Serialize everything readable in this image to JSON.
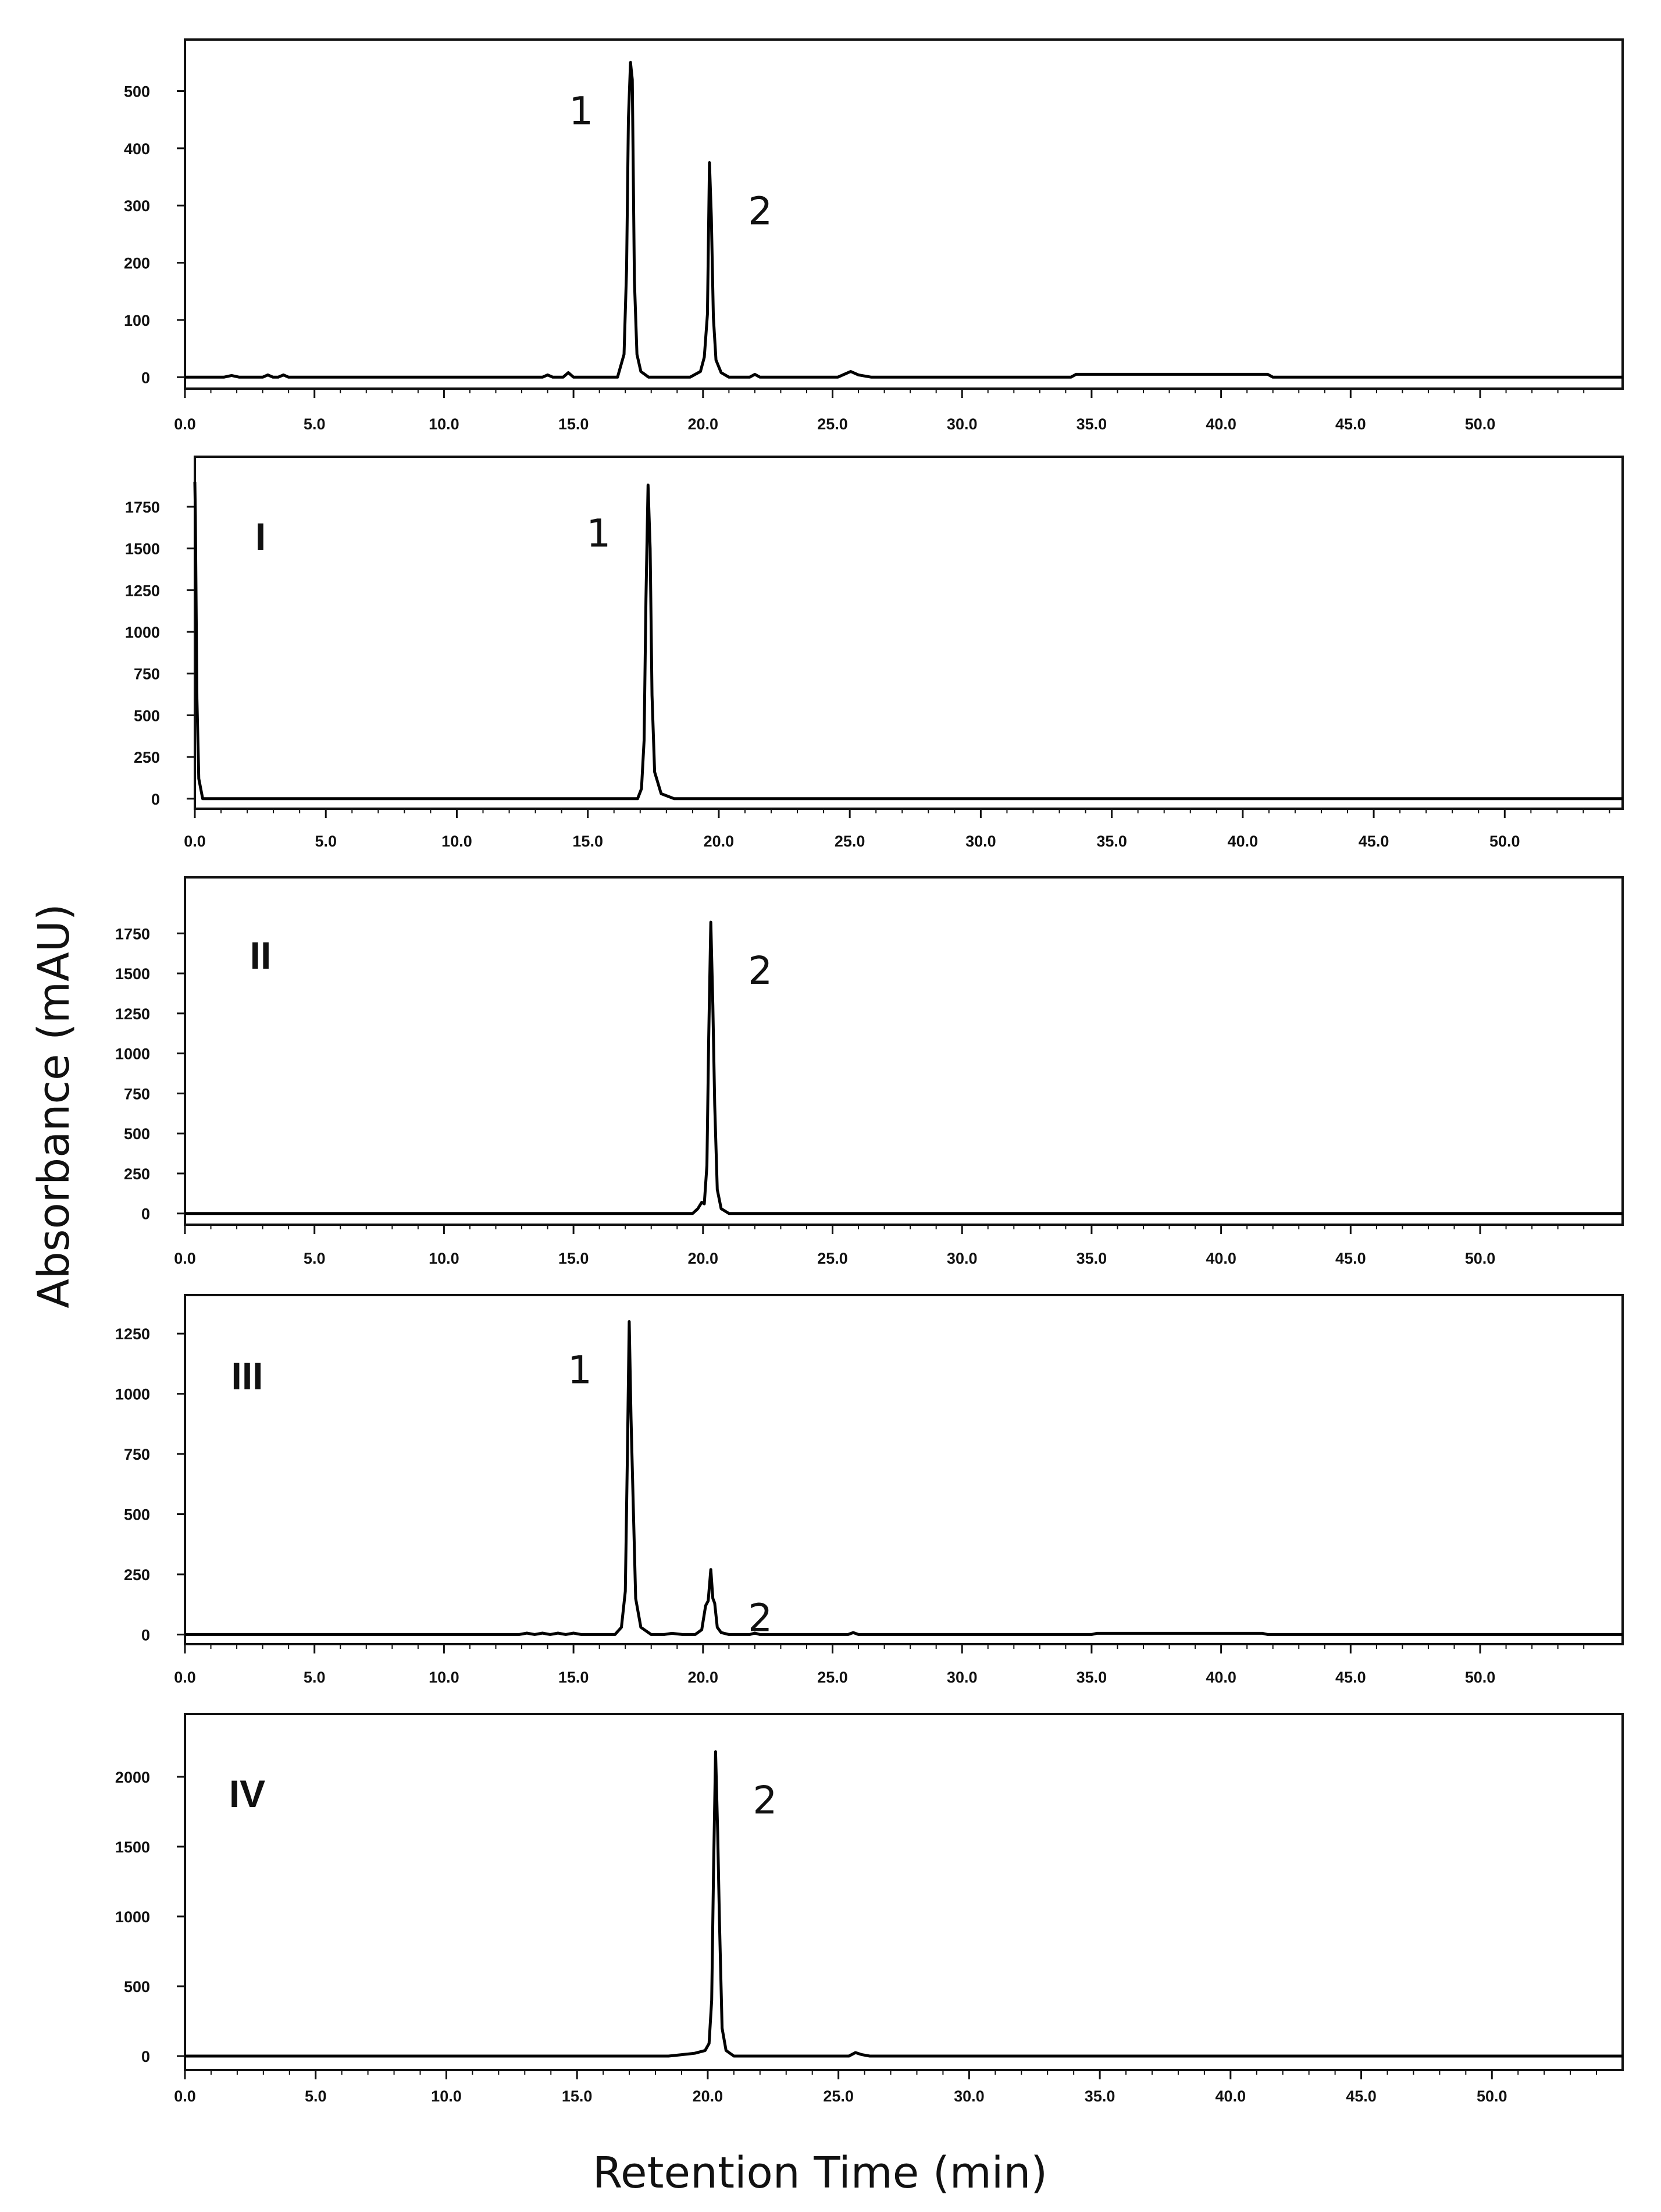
{
  "figure": {
    "xlabel": "Retention Time (min)",
    "ylabel": "Absorbance (mAU)",
    "colors": {
      "trace": "#000000",
      "frame": "#111111"
    }
  },
  "chart_data": [
    {
      "type": "line",
      "panel_label": "",
      "x_ticks": [
        "0.0",
        "5.0",
        "10.0",
        "15.0",
        "20.0",
        "25.0",
        "30.0",
        "35.0",
        "40.0",
        "45.0",
        "50.0"
      ],
      "y_ticks": [
        "0",
        "100",
        "200",
        "300",
        "400",
        "500"
      ],
      "xlim": [
        0,
        55.5
      ],
      "ylim": [
        -20,
        590
      ],
      "peaks": [
        {
          "label": "1",
          "x": 17.2,
          "y": 550
        },
        {
          "label": "2",
          "x": 20.3,
          "y": 375
        }
      ],
      "series": [
        {
          "x": [
            0,
            1.5,
            1.8,
            2.1,
            3.0,
            3.2,
            3.4,
            3.6,
            3.8,
            4.0,
            10,
            13.8,
            14.0,
            14.2,
            14.6,
            14.8,
            15.0,
            16.7,
            16.95,
            17.05,
            17.12,
            17.2,
            17.27,
            17.35,
            17.45,
            17.6,
            17.9,
            18.5,
            19.5,
            19.9,
            20.05,
            20.17,
            20.25,
            20.32,
            20.4,
            20.5,
            20.7,
            21.0,
            21.8,
            22.0,
            22.2,
            25.2,
            25.5,
            25.7,
            26.0,
            26.5,
            34.2,
            34.4,
            41.8,
            42.0,
            55.5
          ],
          "y": [
            0,
            0,
            3,
            0,
            0,
            4,
            0,
            0,
            4,
            0,
            0,
            0,
            4,
            0,
            0,
            8,
            0,
            0,
            40,
            190,
            450,
            550,
            520,
            170,
            40,
            10,
            0,
            0,
            0,
            10,
            35,
            110,
            375,
            280,
            105,
            30,
            8,
            0,
            0,
            5,
            0,
            0,
            6,
            10,
            4,
            0,
            0,
            5,
            5,
            0,
            0
          ]
        }
      ]
    },
    {
      "type": "line",
      "panel_label": "I",
      "x_ticks": [
        "0.0",
        "5.0",
        "10.0",
        "15.0",
        "20.0",
        "25.0",
        "30.0",
        "35.0",
        "40.0",
        "45.0",
        "50.0"
      ],
      "y_ticks": [
        "0",
        "250",
        "500",
        "750",
        "1000",
        "1250",
        "1500",
        "1750"
      ],
      "xlim": [
        0,
        54.5
      ],
      "ylim": [
        -60,
        2050
      ],
      "peaks": [
        {
          "label": "1",
          "x": 17.3,
          "y": 1880
        }
      ],
      "series": [
        {
          "x": [
            0,
            0.02,
            0.08,
            0.15,
            0.3,
            16.9,
            17.05,
            17.15,
            17.22,
            17.3,
            17.38,
            17.45,
            17.55,
            17.8,
            18.3,
            54.5
          ],
          "y": [
            1900,
            1700,
            600,
            120,
            0,
            0,
            60,
            350,
            1200,
            1880,
            1500,
            620,
            160,
            30,
            0,
            0
          ]
        }
      ]
    },
    {
      "type": "line",
      "panel_label": "II",
      "x_ticks": [
        "0.0",
        "5.0",
        "10.0",
        "15.0",
        "20.0",
        "25.0",
        "30.0",
        "35.0",
        "40.0",
        "45.0",
        "50.0"
      ],
      "y_ticks": [
        "0",
        "250",
        "500",
        "750",
        "1000",
        "1250",
        "1500",
        "1750"
      ],
      "xlim": [
        0,
        55.5
      ],
      "ylim": [
        -70,
        2100
      ],
      "peaks": [
        {
          "label": "2",
          "x": 20.3,
          "y": 1820
        }
      ],
      "series": [
        {
          "x": [
            0,
            19.6,
            19.8,
            19.95,
            20.05,
            20.15,
            20.22,
            20.3,
            20.38,
            20.45,
            20.55,
            20.7,
            21.0,
            55.5
          ],
          "y": [
            0,
            0,
            30,
            70,
            60,
            300,
            1100,
            1820,
            1300,
            680,
            150,
            30,
            0,
            0
          ]
        }
      ]
    },
    {
      "type": "line",
      "panel_label": "III",
      "x_ticks": [
        "0.0",
        "5.0",
        "10.0",
        "15.0",
        "20.0",
        "25.0",
        "30.0",
        "35.0",
        "40.0",
        "45.0",
        "50.0"
      ],
      "y_ticks": [
        "0",
        "250",
        "500",
        "750",
        "1000",
        "1250"
      ],
      "xlim": [
        0,
        55.5
      ],
      "ylim": [
        -40,
        1410
      ],
      "peaks": [
        {
          "label": "1",
          "x": 17.15,
          "y": 1300
        },
        {
          "label": "2",
          "x": 20.3,
          "y": 270
        }
      ],
      "series": [
        {
          "x": [
            0,
            12.9,
            13.2,
            13.5,
            13.8,
            14.1,
            14.4,
            14.7,
            15.0,
            15.3,
            16.6,
            16.85,
            17.0,
            17.08,
            17.15,
            17.22,
            17.3,
            17.4,
            17.6,
            18.0,
            18.5,
            18.8,
            19.2,
            19.7,
            19.95,
            20.1,
            20.2,
            20.3,
            20.38,
            20.45,
            20.55,
            20.7,
            21.0,
            21.8,
            22.0,
            22.2,
            25.6,
            25.8,
            26.0,
            35.0,
            35.2,
            41.6,
            41.8,
            55.5
          ],
          "y": [
            0,
            0,
            6,
            0,
            6,
            0,
            6,
            0,
            6,
            0,
            0,
            30,
            180,
            750,
            1300,
            900,
            560,
            150,
            30,
            0,
            0,
            5,
            0,
            0,
            20,
            120,
            140,
            270,
            150,
            130,
            30,
            8,
            0,
            0,
            6,
            0,
            0,
            8,
            0,
            0,
            5,
            5,
            0,
            0
          ]
        }
      ]
    },
    {
      "type": "line",
      "panel_label": "IV",
      "x_ticks": [
        "0.0",
        "5.0",
        "10.0",
        "15.0",
        "20.0",
        "25.0",
        "30.0",
        "35.0",
        "40.0",
        "45.0",
        "50.0"
      ],
      "y_ticks": [
        "0",
        "500",
        "1000",
        "1500",
        "2000"
      ],
      "xlim": [
        0,
        55
      ],
      "ylim": [
        -100,
        2450
      ],
      "peaks": [
        {
          "label": "2",
          "x": 20.3,
          "y": 2180
        }
      ],
      "series": [
        {
          "x": [
            0,
            18.5,
            19.0,
            19.5,
            19.9,
            20.05,
            20.15,
            20.22,
            20.3,
            20.38,
            20.45,
            20.55,
            20.7,
            21.0,
            25.4,
            25.65,
            25.9,
            26.2,
            55
          ],
          "y": [
            0,
            0,
            10,
            20,
            40,
            90,
            400,
            1300,
            2180,
            1600,
            960,
            200,
            40,
            0,
            0,
            25,
            10,
            0,
            0
          ]
        }
      ]
    }
  ]
}
